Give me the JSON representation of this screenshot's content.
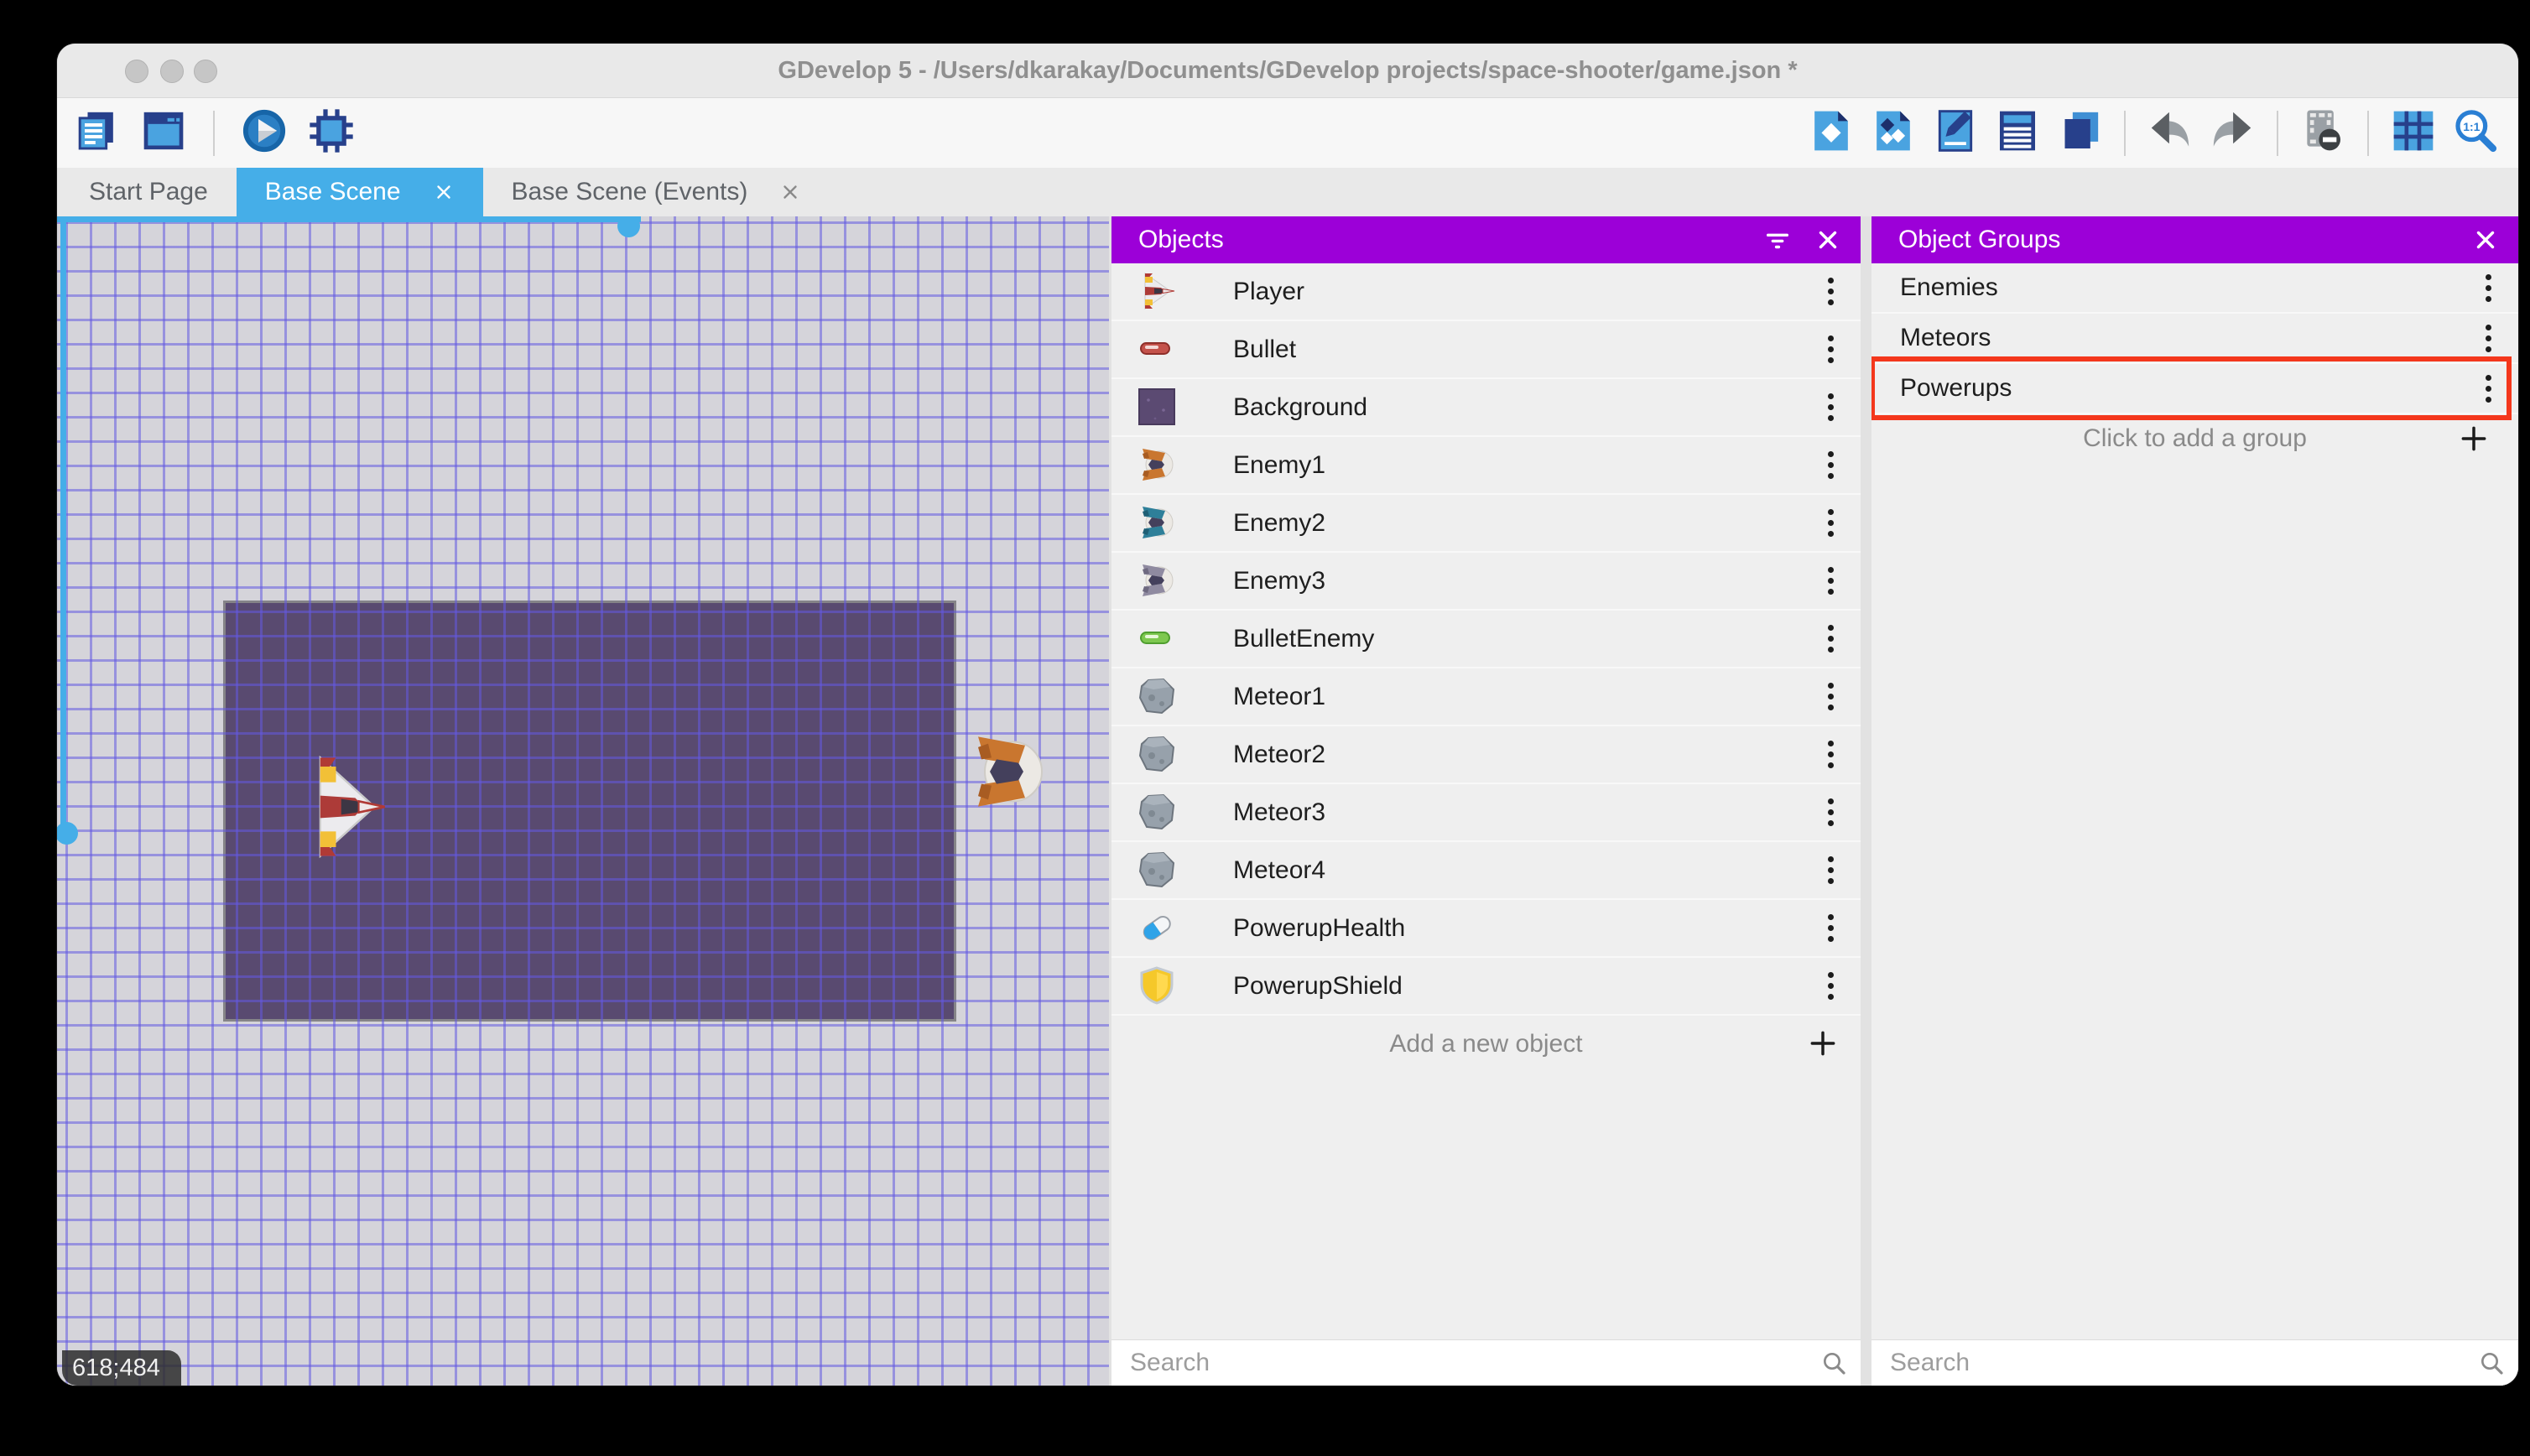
{
  "window": {
    "title": "GDevelop 5 - /Users/dkarakay/Documents/GDevelop projects/space-shooter/game.json *"
  },
  "toolbar": {
    "left_icons": [
      "project-manager-icon",
      "scene-window-icon",
      "play-preview-icon",
      "debug-icon"
    ],
    "right_icons": [
      "objects-panel-icon",
      "object-groups-icon",
      "properties-icon",
      "instances-list-icon",
      "layers-icon",
      "undo-icon",
      "redo-icon",
      "render-mask-icon",
      "grid-icon",
      "zoom-ratio-icon"
    ],
    "zoom_ratio_label": "1:1"
  },
  "tabs": [
    {
      "label": "Start Page",
      "active": false,
      "closable": false
    },
    {
      "label": "Base Scene",
      "active": true,
      "closable": true
    },
    {
      "label": "Base Scene (Events)",
      "active": false,
      "closable": true
    }
  ],
  "canvas": {
    "coordinates": "618;484"
  },
  "objects_panel": {
    "title": "Objects",
    "items": [
      {
        "label": "Player",
        "icon": "player-ship-icon"
      },
      {
        "label": "Bullet",
        "icon": "bullet-icon"
      },
      {
        "label": "Background",
        "icon": "background-icon"
      },
      {
        "label": "Enemy1",
        "icon": "enemy1-ship-icon"
      },
      {
        "label": "Enemy2",
        "icon": "enemy2-ship-icon"
      },
      {
        "label": "Enemy3",
        "icon": "enemy3-ship-icon"
      },
      {
        "label": "BulletEnemy",
        "icon": "bullet-enemy-icon"
      },
      {
        "label": "Meteor1",
        "icon": "meteor-icon"
      },
      {
        "label": "Meteor2",
        "icon": "meteor-icon"
      },
      {
        "label": "Meteor3",
        "icon": "meteor-icon"
      },
      {
        "label": "Meteor4",
        "icon": "meteor-icon"
      },
      {
        "label": "PowerupHealth",
        "icon": "powerup-health-icon"
      },
      {
        "label": "PowerupShield",
        "icon": "powerup-shield-icon"
      }
    ],
    "add_label": "Add a new object",
    "search_placeholder": "Search"
  },
  "object_groups_panel": {
    "title": "Object Groups",
    "items": [
      {
        "label": "Enemies",
        "highlighted": false
      },
      {
        "label": "Meteors",
        "highlighted": false
      },
      {
        "label": "Powerups",
        "highlighted": true
      }
    ],
    "add_label": "Click to add a group",
    "search_placeholder": "Search"
  },
  "colors": {
    "accent_blue": "#45aee8",
    "panel_header_purple": "#9c00d8",
    "highlight_red": "#f4371c",
    "canvas_bg": "#d5d4da",
    "scene_rect": "#594a70",
    "grid_line": "rgba(100,90,225,0.55)"
  }
}
